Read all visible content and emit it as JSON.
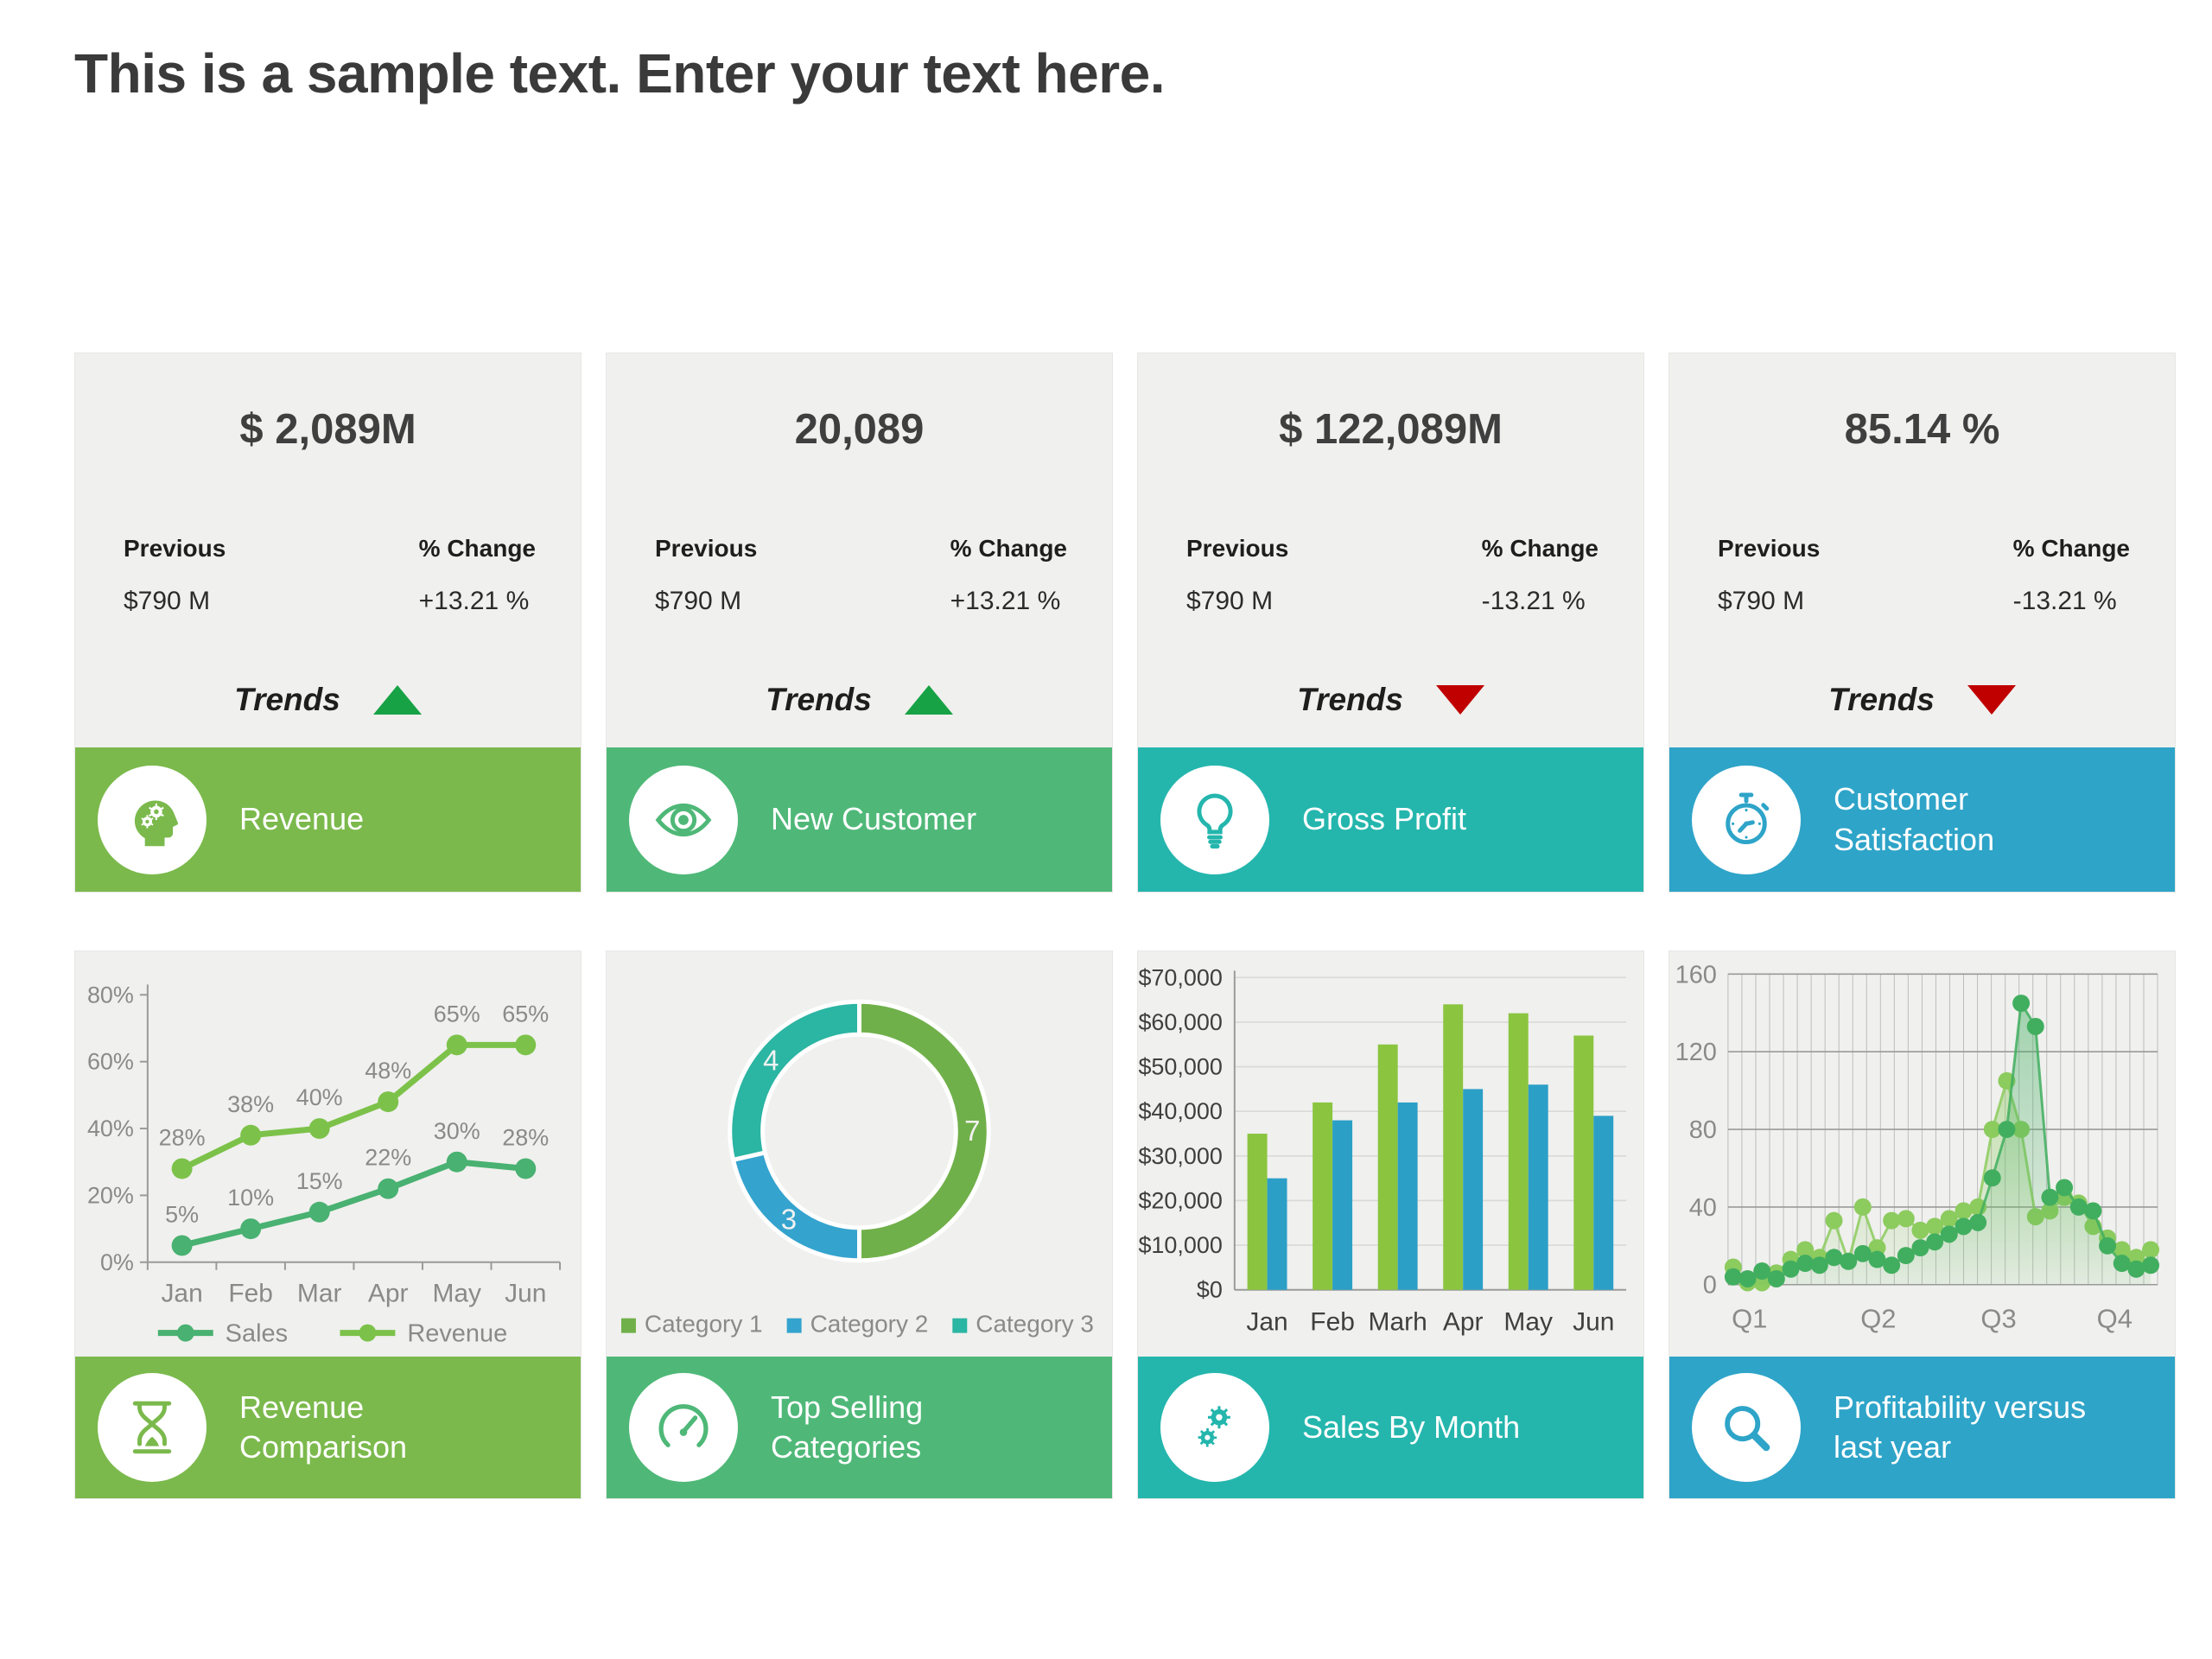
{
  "title": "This is a sample text. Enter your text here.",
  "colors": {
    "accent_green_light": "#7BB94C",
    "accent_green": "#4FB878",
    "accent_teal": "#24B6AD",
    "accent_blue": "#2EA4C8",
    "trend_up": "#17A245",
    "trend_down": "#C00000",
    "card_bg": "#F0F0EE",
    "axis_text": "#8A8A8A"
  },
  "kpi_cards": [
    {
      "value": "$ 2,089M",
      "previous_label": "Previous",
      "previous_value": "$790 M",
      "change_label": "% Change",
      "change_value": "+13.21 %",
      "trends_label": "Trends",
      "trend": "up",
      "footer": {
        "label": "Revenue",
        "icon": "head-gears-icon",
        "color": "#7BB94C"
      }
    },
    {
      "value": "20,089",
      "previous_label": "Previous",
      "previous_value": "$790 M",
      "change_label": "% Change",
      "change_value": "+13.21 %",
      "trends_label": "Trends",
      "trend": "up",
      "footer": {
        "label": "New Customer",
        "icon": "eye-icon",
        "color": "#4FB878"
      }
    },
    {
      "value": "$ 122,089M",
      "previous_label": "Previous",
      "previous_value": "$790 M",
      "change_label": "% Change",
      "change_value": "-13.21 %",
      "trends_label": "Trends",
      "trend": "down",
      "footer": {
        "label": "Gross Profit",
        "icon": "lightbulb-icon",
        "color": "#24B6AD"
      }
    },
    {
      "value": "85.14 %",
      "previous_label": "Previous",
      "previous_value": "$790 M",
      "change_label": "% Change",
      "change_value": "-13.21 %",
      "trends_label": "Trends",
      "trend": "down",
      "footer": {
        "label": "Customer Satisfaction",
        "icon": "stopwatch-icon",
        "color": "#2EA4C8"
      }
    }
  ],
  "chart_cards": [
    {
      "label": "Revenue Comparison",
      "icon": "hourglass-icon",
      "color": "#7BB94C"
    },
    {
      "label": "Top Selling Categories",
      "icon": "gauge-icon",
      "color": "#4FB878"
    },
    {
      "label": "Sales By Month",
      "icon": "gears-icon",
      "color": "#24B6AD"
    },
    {
      "label": "Profitability versus last year",
      "icon": "magnifier-icon",
      "color": "#2EA4C8"
    }
  ],
  "chart_data": [
    {
      "type": "line",
      "title": "Revenue Comparison",
      "categories": [
        "Jan",
        "Feb",
        "Mar",
        "Apr",
        "May",
        "Jun"
      ],
      "series": [
        {
          "name": "Sales",
          "color": "#49B171",
          "values": [
            5,
            10,
            15,
            22,
            30,
            28
          ]
        },
        {
          "name": "Revenue",
          "color": "#7CC24A",
          "values": [
            28,
            38,
            40,
            48,
            65,
            65
          ]
        }
      ],
      "ylim": [
        0,
        80
      ],
      "ytick_values": [
        0,
        20,
        40,
        60,
        80
      ],
      "ytick_labels": [
        "0%",
        "20%",
        "40%",
        "60%",
        "80%"
      ],
      "data_label_suffix": "%",
      "grid": "off",
      "legend_position": "bottom"
    },
    {
      "type": "donut",
      "title": "Top Selling Categories",
      "slices": [
        {
          "label": "Category 1",
          "value": 7,
          "color": "#70B04A"
        },
        {
          "label": "Category 2",
          "value": 3,
          "color": "#34A3CE"
        },
        {
          "label": "Category 3",
          "value": 4,
          "color": "#2BB5A3"
        }
      ],
      "legend_position": "bottom"
    },
    {
      "type": "bar",
      "title": "Sales By Month",
      "categories": [
        "Jan",
        "Feb",
        "Marh",
        "Apr",
        "May",
        "Jun"
      ],
      "series": [
        {
          "name": "series-green",
          "color": "#8BC540",
          "values": [
            35000,
            42000,
            55000,
            64000,
            62000,
            57000
          ]
        },
        {
          "name": "series-blue",
          "color": "#2C9FC7",
          "values": [
            25000,
            38000,
            42000,
            45000,
            46000,
            39000
          ]
        }
      ],
      "ylim": [
        0,
        70000
      ],
      "ytick_values": [
        0,
        10000,
        20000,
        30000,
        40000,
        50000,
        60000,
        70000
      ],
      "ytick_labels": [
        "$0",
        "$10,000",
        "$20,000",
        "$30,000",
        "$40,000",
        "$50,000",
        "$60,000",
        "$70,000"
      ],
      "grid": "horizontal",
      "legend_position": "none"
    },
    {
      "type": "scatter",
      "title": "Profitability versus last year",
      "x_categories": [
        "Q1",
        "Q2",
        "Q3",
        "Q4"
      ],
      "x_category_positions": [
        0.05,
        0.35,
        0.63,
        0.9
      ],
      "ylim": [
        0,
        160
      ],
      "ytick_values": [
        0,
        40,
        80,
        120,
        160
      ],
      "ytick_labels": [
        "0",
        "40",
        "80",
        "120",
        "160"
      ],
      "grid": "both",
      "vertical_gridlines": 31,
      "legend_position": "none",
      "series": [
        {
          "name": "last-year",
          "color": "#8CCB5E",
          "values": [
            9,
            1,
            1,
            6,
            13,
            18,
            14,
            33,
            12,
            40,
            19,
            33,
            34,
            28,
            30,
            34,
            38,
            40,
            80,
            105,
            80,
            35,
            38,
            45,
            42,
            30,
            24,
            18,
            14,
            18
          ]
        },
        {
          "name": "this-year",
          "color": "#41AE5F",
          "values": [
            4,
            3,
            7,
            3,
            8,
            11,
            10,
            14,
            12,
            16,
            13,
            10,
            15,
            19,
            22,
            26,
            30,
            32,
            55,
            80,
            145,
            133,
            45,
            50,
            40,
            38,
            20,
            11,
            8,
            10
          ]
        }
      ]
    }
  ]
}
